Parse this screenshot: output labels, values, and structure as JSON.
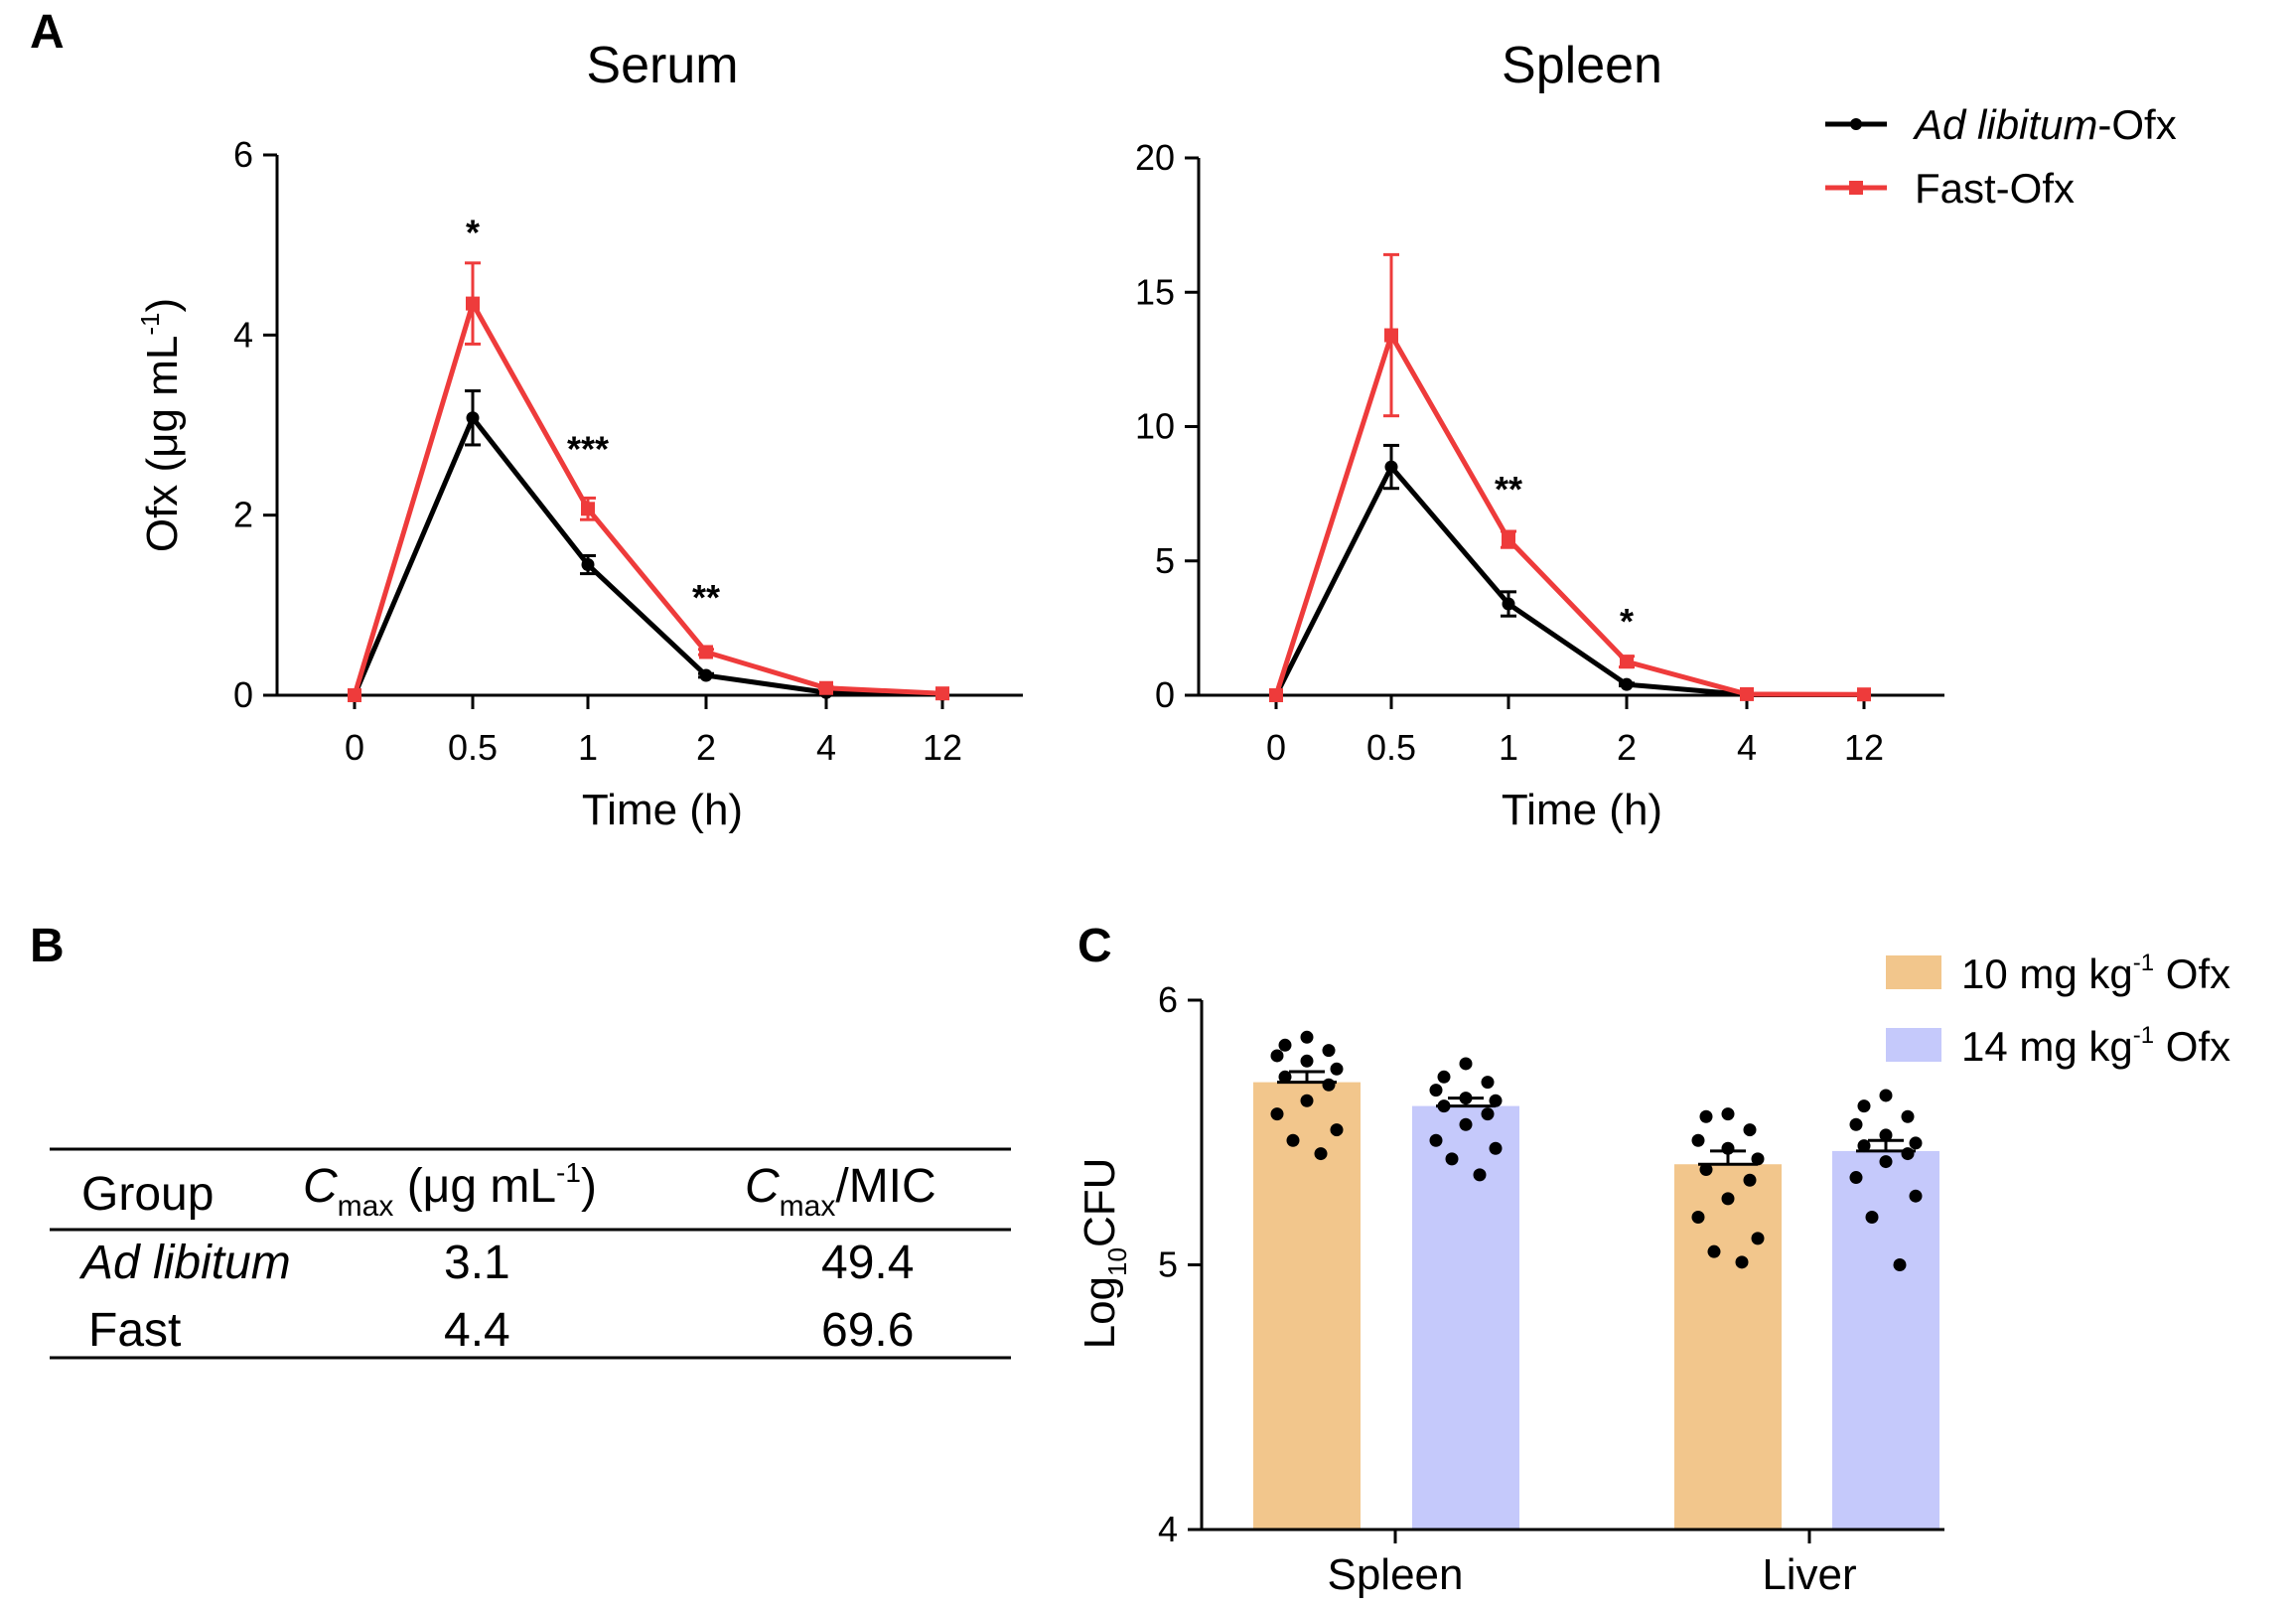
{
  "panels": {
    "A": "A",
    "B": "B",
    "C": "C"
  },
  "chart_data": [
    {
      "id": "serum",
      "type": "line",
      "title": "Serum",
      "xlabel": "Time (h)",
      "ylabel": "Ofx (μg mL⁻¹)",
      "categories": [
        "0",
        "0.5",
        "1",
        "2",
        "4",
        "12"
      ],
      "ylim": [
        0,
        6
      ],
      "yticks": [
        0,
        2,
        4,
        6
      ],
      "series": [
        {
          "name": "Ad libitum-Ofx",
          "color": "#000000",
          "marker": "circle",
          "values": [
            0,
            3.08,
            1.45,
            0.22,
            0.03,
            0.01
          ],
          "errors": [
            0,
            0.3,
            0.1,
            0.02,
            0.01,
            0
          ]
        },
        {
          "name": "Fast-Ofx",
          "color": "#ee3b3b",
          "marker": "square",
          "values": [
            0,
            4.35,
            2.07,
            0.48,
            0.08,
            0.02
          ],
          "errors": [
            0,
            0.45,
            0.12,
            0.03,
            0.01,
            0
          ]
        }
      ],
      "annotations": [
        {
          "at": "0.5",
          "y": 5.0,
          "text": "*"
        },
        {
          "at": "1",
          "y": 2.6,
          "text": "***"
        },
        {
          "at": "2",
          "y": 0.95,
          "text": "**"
        }
      ],
      "grid": false
    },
    {
      "id": "spleen",
      "type": "line",
      "title": "Spleen",
      "xlabel": "Time (h)",
      "ylabel": "",
      "categories": [
        "0",
        "0.5",
        "1",
        "2",
        "4",
        "12"
      ],
      "ylim": [
        0,
        20
      ],
      "yticks": [
        0,
        5,
        10,
        15,
        20
      ],
      "series": [
        {
          "name": "Ad libitum-Ofx",
          "color": "#000000",
          "marker": "circle",
          "values": [
            0,
            8.5,
            3.4,
            0.4,
            0.02,
            0.02
          ],
          "errors": [
            0,
            0.8,
            0.45,
            0.05,
            0,
            0
          ]
        },
        {
          "name": "Fast-Ofx",
          "color": "#ee3b3b",
          "marker": "square",
          "values": [
            0,
            13.4,
            5.8,
            1.25,
            0.04,
            0.03
          ],
          "errors": [
            0,
            3.0,
            0.3,
            0.2,
            0,
            0
          ]
        }
      ],
      "annotations": [
        {
          "at": "1",
          "y": 7.2,
          "text": "**"
        },
        {
          "at": "2",
          "y": 2.3,
          "text": "*"
        }
      ],
      "legend": "top-right",
      "grid": false
    },
    {
      "id": "cfu",
      "type": "bar",
      "title": "",
      "xlabel": "",
      "ylabel": "Log10CFU",
      "categories": [
        "Spleen",
        "Liver"
      ],
      "ylim": [
        4,
        6
      ],
      "yticks": [
        4,
        5,
        6
      ],
      "series": [
        {
          "name": "10 mg kg-1 Ofx",
          "color": "#f2c68c",
          "values": [
            5.69,
            5.38
          ],
          "errors": [
            0.04,
            0.05
          ],
          "points": [
            [
              5.86,
              5.83,
              5.81,
              5.79,
              5.77,
              5.74,
              5.71,
              5.68,
              5.62,
              5.57,
              5.51,
              5.47,
              5.42
            ],
            [
              5.57,
              5.56,
              5.51,
              5.47,
              5.44,
              5.4,
              5.36,
              5.32,
              5.25,
              5.18,
              5.1,
              5.05,
              5.01
            ]
          ]
        },
        {
          "name": "14 mg kg-1 Ofx",
          "color": "#c5c9fb",
          "values": [
            5.6,
            5.43
          ],
          "errors": [
            0.03,
            0.04
          ],
          "points": [
            [
              5.76,
              5.71,
              5.69,
              5.66,
              5.63,
              5.62,
              5.6,
              5.57,
              5.53,
              5.47,
              5.44,
              5.4,
              5.34
            ],
            [
              5.64,
              5.6,
              5.56,
              5.53,
              5.49,
              5.46,
              5.45,
              5.42,
              5.39,
              5.33,
              5.26,
              5.18,
              5.0
            ]
          ]
        }
      ],
      "legend": "top-right",
      "grid": false
    }
  ],
  "legend_line": [
    {
      "italic": "Ad libitum",
      "rest": "-Ofx"
    },
    {
      "italic": "",
      "rest": "Fast-Ofx"
    }
  ],
  "legend_bar": [
    {
      "pre": "10 mg kg",
      "sup": "-1",
      "post": " Ofx"
    },
    {
      "pre": "14 mg kg",
      "sup": "-1",
      "post": " Ofx"
    }
  ],
  "table": {
    "headers": [
      {
        "main": "Group"
      },
      {
        "italic": "C",
        "sub": "max",
        "main": " (μg mL",
        "sup": "-1",
        "post": ")"
      },
      {
        "italic": "C",
        "sub": "max",
        "main": "/MIC"
      }
    ],
    "rows": [
      {
        "group": "Ad libitum",
        "italic": true,
        "cmax": "3.1",
        "ratio": "49.4"
      },
      {
        "group": "Fast",
        "italic": false,
        "cmax": "4.4",
        "ratio": "69.6"
      }
    ]
  }
}
